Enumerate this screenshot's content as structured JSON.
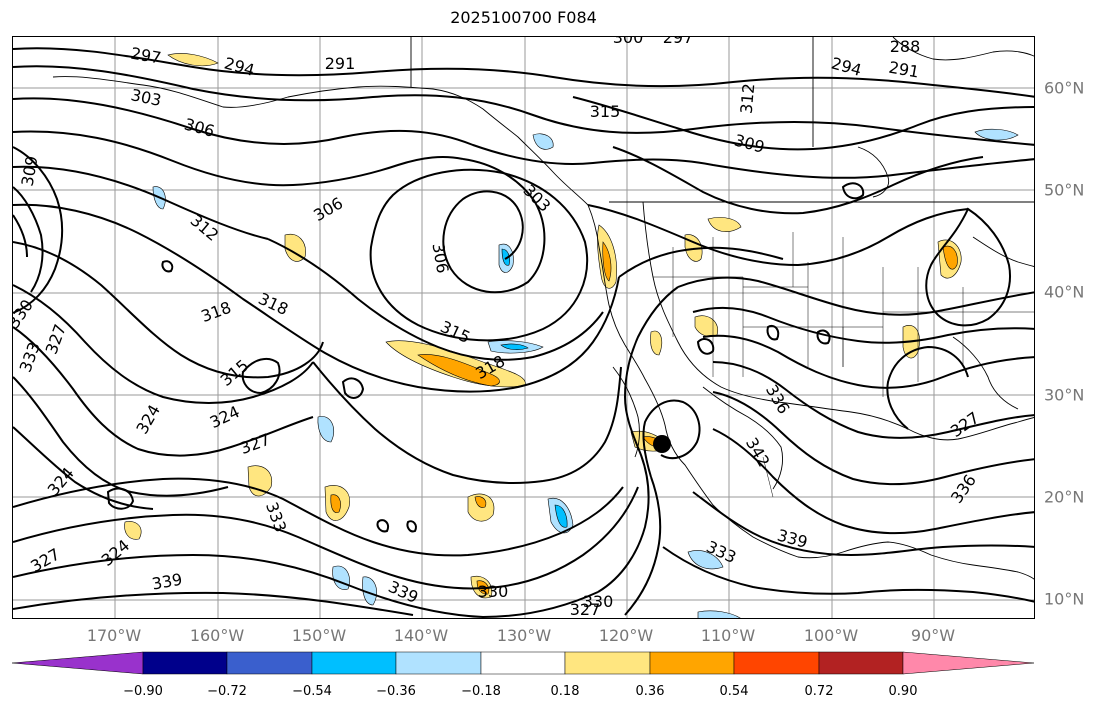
{
  "title": "2025100700 F084",
  "longitude_labels": [
    "170°W",
    "160°W",
    "150°W",
    "140°W",
    "130°W",
    "120°W",
    "110°W",
    "100°W",
    "90°W"
  ],
  "latitude_labels": [
    "60°N",
    "50°N",
    "40°N",
    "30°N",
    "20°N",
    "10°N"
  ],
  "colorbar": {
    "ticks": [
      "−0.90",
      "−0.72",
      "−0.54",
      "−0.36",
      "−0.18",
      "0.18",
      "0.36",
      "0.54",
      "0.72",
      "0.90"
    ],
    "colors": [
      "#9932cc",
      "#00008b",
      "#3a5fcd",
      "#00bfff",
      "#b0e2ff",
      "#ffffff",
      "#ffe680",
      "#ffa500",
      "#ff4500",
      "#b22222",
      "#ff88aa"
    ]
  },
  "contour_labels": [
    "297",
    "294",
    "291",
    "300",
    "297",
    "288",
    "291",
    "294",
    "303",
    "306",
    "312",
    "315",
    "309",
    "303",
    "306",
    "309",
    "306",
    "312",
    "318",
    "318",
    "315",
    "315",
    "318",
    "324",
    "324",
    "327",
    "330",
    "333",
    "327",
    "324",
    "324",
    "327",
    "333",
    "339",
    "339",
    "330",
    "327",
    "330",
    "333",
    "339",
    "342",
    "336",
    "327",
    "336"
  ],
  "colors": {
    "contour": "#000000",
    "grid": "#9a9a9a",
    "coast": "#000000",
    "axis_label": "#777777"
  }
}
